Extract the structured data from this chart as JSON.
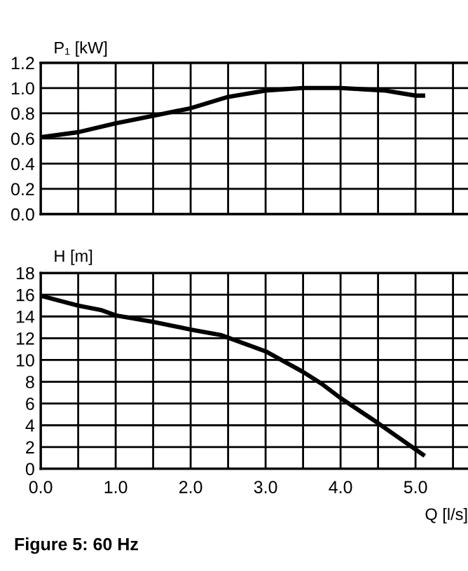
{
  "chart_data": [
    {
      "type": "line",
      "ylabel": "P₁ [kW]",
      "tick_labels": "y",
      "grid": true,
      "marker": "none",
      "line_style": "solid",
      "xlim": [
        0,
        5.7
      ],
      "xticks": [
        0,
        {
          "value": 0.5,
          "label": null
        },
        1,
        {
          "value": 1.5,
          "label": null
        },
        2,
        {
          "value": 2.5,
          "label": null
        },
        3,
        {
          "value": 3.5,
          "label": null
        },
        4,
        {
          "value": 4.5,
          "label": null
        },
        5,
        {
          "value": 5.5,
          "label": null
        }
      ],
      "ylim": [
        0,
        1.2
      ],
      "yticks": [
        {
          "value": 0,
          "label": "0.0"
        },
        0.2,
        0.4,
        0.6,
        0.8,
        {
          "value": 1,
          "label": "1.0"
        },
        1.2
      ],
      "series": [
        {
          "color": "#000000",
          "x": [
            0,
            0.5,
            1.0,
            1.5,
            2.0,
            2.5,
            3.0,
            3.5,
            4.0,
            4.3,
            4.6,
            5.0,
            5.1
          ],
          "values": [
            0.61,
            0.65,
            0.72,
            0.78,
            0.84,
            0.93,
            0.98,
            1.0,
            1.0,
            0.99,
            0.98,
            0.94,
            0.94
          ]
        }
      ]
    },
    {
      "type": "line",
      "ylabel": "H [m]",
      "xlabel": "Q [l/s]",
      "grid": true,
      "marker": "none",
      "line_style": "solid",
      "xlim": [
        0,
        5.7
      ],
      "xticks": [
        {
          "value": 0,
          "label": "0.0"
        },
        {
          "value": 0.5,
          "label": null
        },
        {
          "value": 1,
          "label": "1.0"
        },
        {
          "value": 1.5,
          "label": null
        },
        {
          "value": 2,
          "label": "2.0"
        },
        {
          "value": 2.5,
          "label": null
        },
        {
          "value": 3,
          "label": "3.0"
        },
        {
          "value": 3.5,
          "label": null
        },
        {
          "value": 4,
          "label": "4.0"
        },
        {
          "value": 4.5,
          "label": null
        },
        {
          "value": 5,
          "label": "5.0"
        },
        {
          "value": 5.5,
          "label": null
        }
      ],
      "ylim": [
        0,
        18
      ],
      "yticks": [
        0,
        2,
        4,
        6,
        8,
        10,
        12,
        14,
        16,
        18
      ],
      "series": [
        {
          "color": "#000000",
          "x": [
            0,
            0.5,
            0.8,
            1.0,
            1.5,
            2.0,
            2.4,
            3.0,
            3.5,
            3.75,
            4.0,
            4.5,
            5.1
          ],
          "values": [
            15.9,
            15.0,
            14.6,
            14.1,
            13.5,
            12.8,
            12.3,
            10.8,
            8.9,
            7.8,
            6.5,
            4.2,
            1.3
          ]
        }
      ],
      "annotations": [
        "Figure 5: 60 Hz"
      ]
    }
  ]
}
